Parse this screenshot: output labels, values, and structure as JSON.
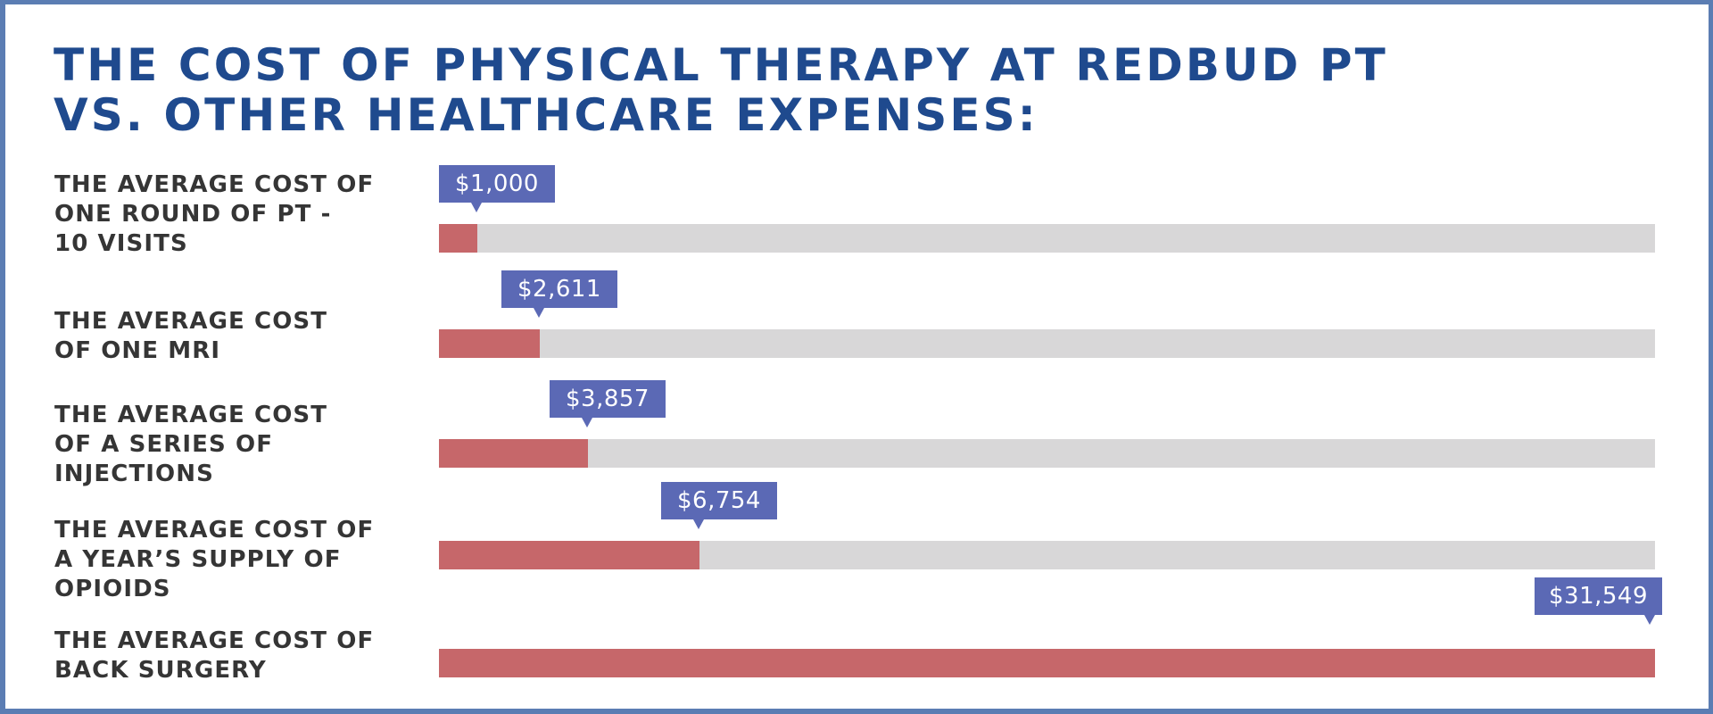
{
  "title": {
    "line1": "THE COST OF PHYSICAL THERAPY AT REDBUD PT",
    "line2": "VS. OTHER HEALTHCARE EXPENSES:"
  },
  "colors": {
    "frame": "#5b7db3",
    "title": "#1f4a8e",
    "label": "#353535",
    "bar_fill": "#c6676a",
    "bar_track": "#d8d7d8",
    "bubble": "#5b69b5"
  },
  "chart_data": {
    "type": "bar",
    "orientation": "horizontal",
    "title": "THE COST OF PHYSICAL THERAPY AT REDBUD PT VS. OTHER HEALTHCARE EXPENSES:",
    "xlabel": "",
    "ylabel": "",
    "xlim": [
      0,
      31549
    ],
    "grid": false,
    "categories": [
      [
        "THE AVERAGE COST OF",
        "ONE ROUND OF PT -",
        "10 VISITS"
      ],
      [
        "THE AVERAGE COST",
        "OF ONE MRI"
      ],
      [
        "THE AVERAGE COST",
        "OF A SERIES OF",
        "INJECTIONS"
      ],
      [
        "THE AVERAGE COST OF",
        "A YEAR’S SUPPLY OF",
        "OPIOIDS"
      ],
      [
        "THE AVERAGE COST OF",
        "BACK SURGERY"
      ]
    ],
    "values": [
      1000,
      2611,
      3857,
      6754,
      31549
    ],
    "data_labels": [
      "$1,000",
      "$2,611",
      "$3,857",
      "$6,754",
      "$31,549"
    ]
  }
}
